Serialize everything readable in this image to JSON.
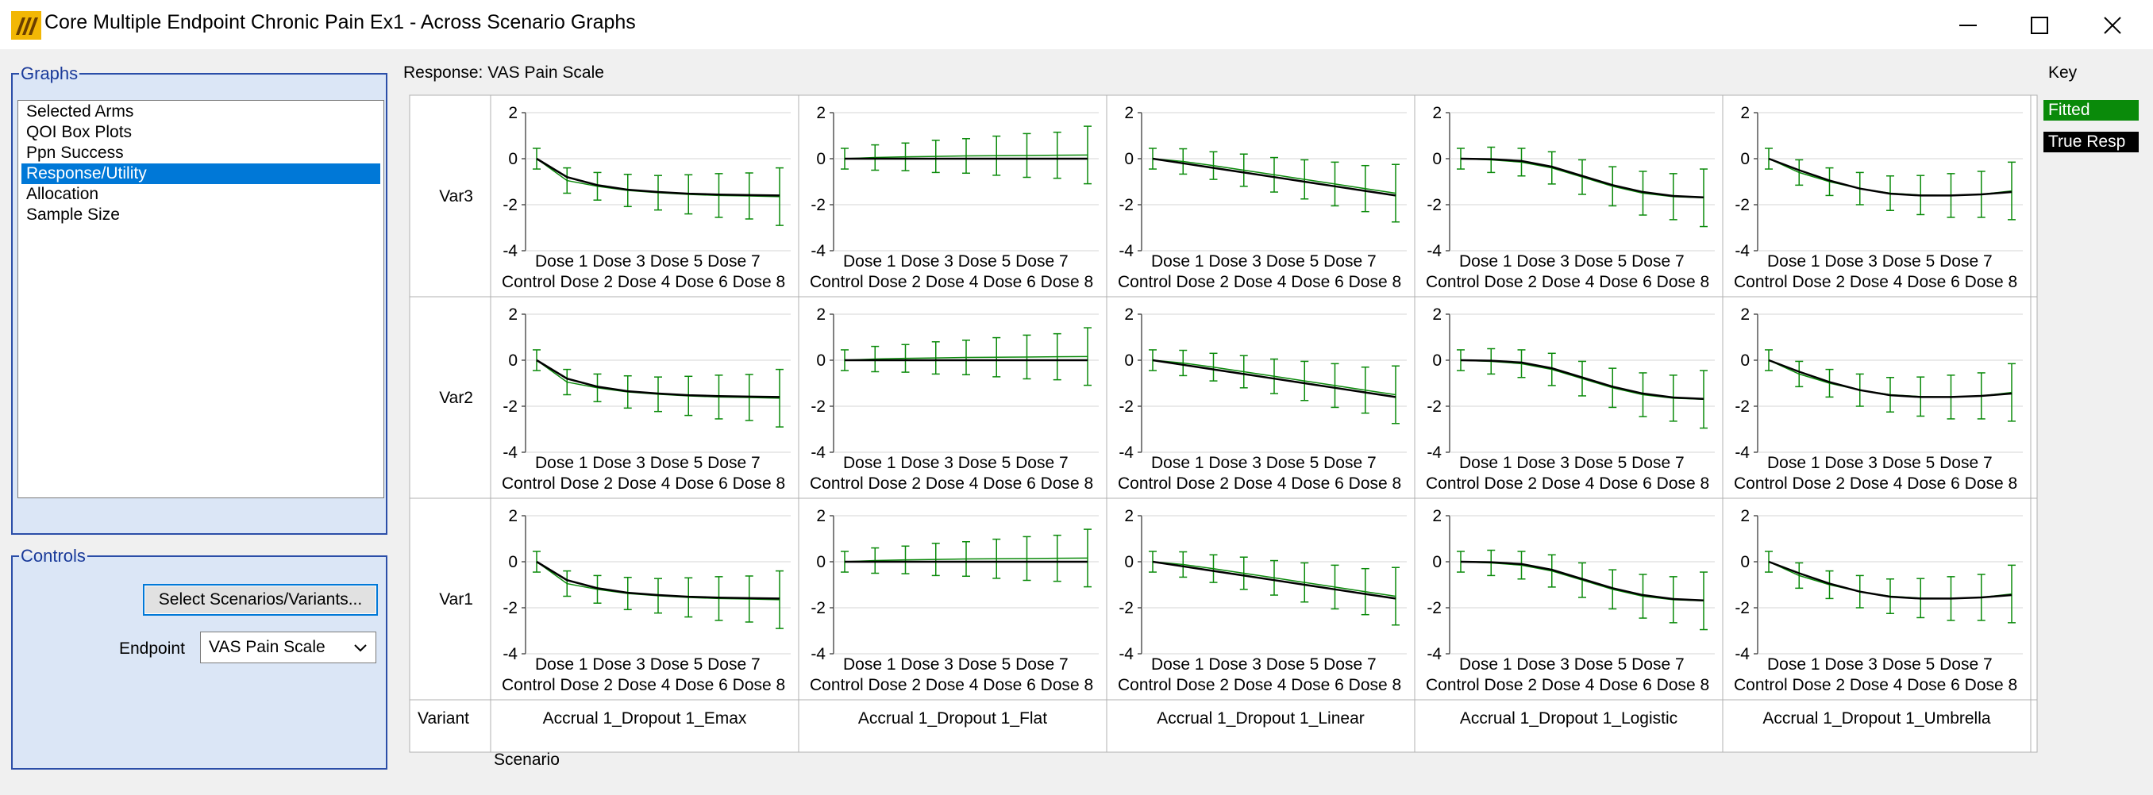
{
  "window": {
    "title": "Core Multiple Endpoint Chronic Pain Ex1 - Across Scenario Graphs",
    "icon": "facts-logo-icon",
    "controls": [
      "minimize-icon",
      "maximize-icon",
      "close-icon"
    ]
  },
  "graphs_panel": {
    "title": "Graphs",
    "items": [
      {
        "label": "Selected Arms"
      },
      {
        "label": "QOI Box Plots"
      },
      {
        "label": "Ppn Success"
      },
      {
        "label": "Response/Utility",
        "selected": true
      },
      {
        "label": "Allocation"
      },
      {
        "label": "Sample Size"
      }
    ]
  },
  "controls_panel": {
    "title": "Controls",
    "select_button": "Select Scenarios/Variants...",
    "endpoint_label": "Endpoint",
    "endpoint_value": "VAS Pain Scale"
  },
  "main": {
    "response_label": "Response: VAS Pain Scale",
    "key_title": "Key",
    "key_items": [
      {
        "label": "Fitted",
        "color": "#0a8a0a"
      },
      {
        "label": "True Resp",
        "color": "#000000"
      }
    ],
    "variant_header": "Variant",
    "scenario_axis_title": "Scenario"
  },
  "chart_data": {
    "type": "line",
    "y_ticks": [
      "2",
      "0",
      "-2",
      "-4"
    ],
    "ylim": [
      -4,
      2
    ],
    "x_tick_labels_top": "Dose 1 Dose 3 Dose 5 Dose 7",
    "x_tick_labels_bottom": "Control Dose 2 Dose 4 Dose 6 Dose 8",
    "categories": [
      "Control",
      "Dose 1",
      "Dose 2",
      "Dose 3",
      "Dose 4",
      "Dose 5",
      "Dose 6",
      "Dose 7",
      "Dose 8"
    ],
    "variants": [
      "Var3",
      "Var2",
      "Var1"
    ],
    "scenarios": [
      "Accrual 1_Dropout 1_Emax",
      "Accrual 1_Dropout 1_Flat",
      "Accrual 1_Dropout 1_Linear",
      "Accrual 1_Dropout 1_Logistic",
      "Accrual 1_Dropout 1_Umbrella"
    ],
    "true_response": {
      "Accrual 1_Dropout 1_Emax": [
        0,
        -0.8,
        -1.15,
        -1.35,
        -1.45,
        -1.52,
        -1.56,
        -1.58,
        -1.6
      ],
      "Accrual 1_Dropout 1_Flat": [
        0,
        0,
        0,
        0,
        0,
        0,
        0,
        0,
        0
      ],
      "Accrual 1_Dropout 1_Linear": [
        0,
        -0.2,
        -0.4,
        -0.6,
        -0.8,
        -1.0,
        -1.2,
        -1.4,
        -1.6
      ],
      "Accrual 1_Dropout 1_Logistic": [
        0,
        -0.02,
        -0.1,
        -0.35,
        -0.75,
        -1.15,
        -1.45,
        -1.62,
        -1.68
      ],
      "Accrual 1_Dropout 1_Umbrella": [
        0,
        -0.5,
        -0.95,
        -1.3,
        -1.52,
        -1.6,
        -1.6,
        -1.55,
        -1.45
      ]
    },
    "fitted": {
      "Accrual 1_Dropout 1_Emax": [
        0,
        -0.95,
        -1.2,
        -1.38,
        -1.48,
        -1.55,
        -1.6,
        -1.62,
        -1.65
      ],
      "Accrual 1_Dropout 1_Flat": [
        0,
        0.05,
        0.08,
        0.1,
        0.12,
        0.13,
        0.14,
        0.15,
        0.16
      ],
      "Accrual 1_Dropout 1_Linear": [
        0,
        -0.12,
        -0.3,
        -0.5,
        -0.7,
        -0.9,
        -1.1,
        -1.3,
        -1.5
      ],
      "Accrual 1_Dropout 1_Logistic": [
        0,
        -0.05,
        -0.15,
        -0.4,
        -0.8,
        -1.2,
        -1.5,
        -1.65,
        -1.7
      ],
      "Accrual 1_Dropout 1_Umbrella": [
        0,
        -0.6,
        -1.0,
        -1.3,
        -1.5,
        -1.58,
        -1.6,
        -1.55,
        -1.4
      ]
    },
    "error_half_width": [
      0.45,
      0.55,
      0.6,
      0.7,
      0.75,
      0.85,
      0.95,
      1.0,
      1.25
    ],
    "series_colors": {
      "fitted": "#0a8a0a",
      "true_response": "#000000"
    }
  }
}
